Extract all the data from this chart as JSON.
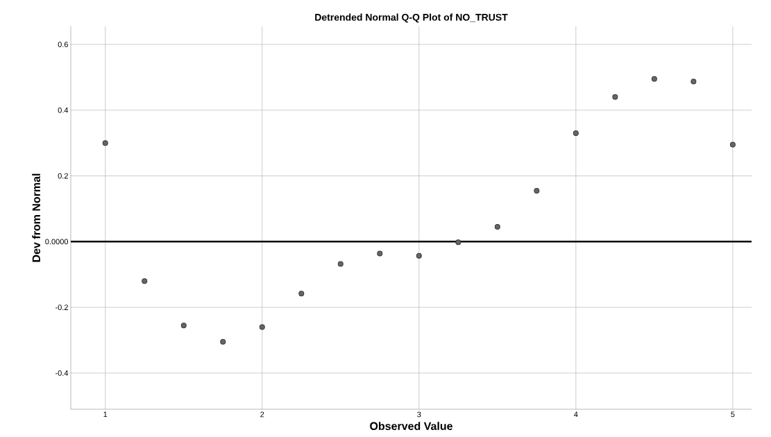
{
  "chart_data": {
    "type": "scatter",
    "title": "Detrended Normal Q-Q Plot of NO_TRUST",
    "xlabel": "Observed Value",
    "ylabel": "Dev from Normal",
    "x": [
      1,
      1.25,
      1.5,
      1.75,
      2,
      2.25,
      2.5,
      2.75,
      3,
      3.25,
      3.5,
      3.75,
      4,
      4.25,
      4.5,
      4.75,
      5
    ],
    "series": [
      {
        "color": "#666666",
        "values": [
          0.3,
          -0.12,
          -0.255,
          -0.305,
          -0.26,
          -0.158,
          -0.068,
          -0.036,
          -0.043,
          -0.002,
          0.045,
          0.155,
          0.33,
          0.44,
          0.495,
          0.487,
          0.295
        ]
      }
    ],
    "xlim": [
      0.78,
      5.12
    ],
    "ylim": [
      -0.51,
      0.655
    ],
    "xticks": [
      1,
      2,
      3,
      4,
      5
    ],
    "yticks": [
      -0.4,
      -0.2,
      {
        "value": 0,
        "label": "0.0000"
      },
      0.2,
      0.4,
      0.6
    ],
    "ref_lines": [
      {
        "axis": "y",
        "value": 0,
        "color": "#000000"
      }
    ],
    "grid": true,
    "marker": "circle"
  }
}
